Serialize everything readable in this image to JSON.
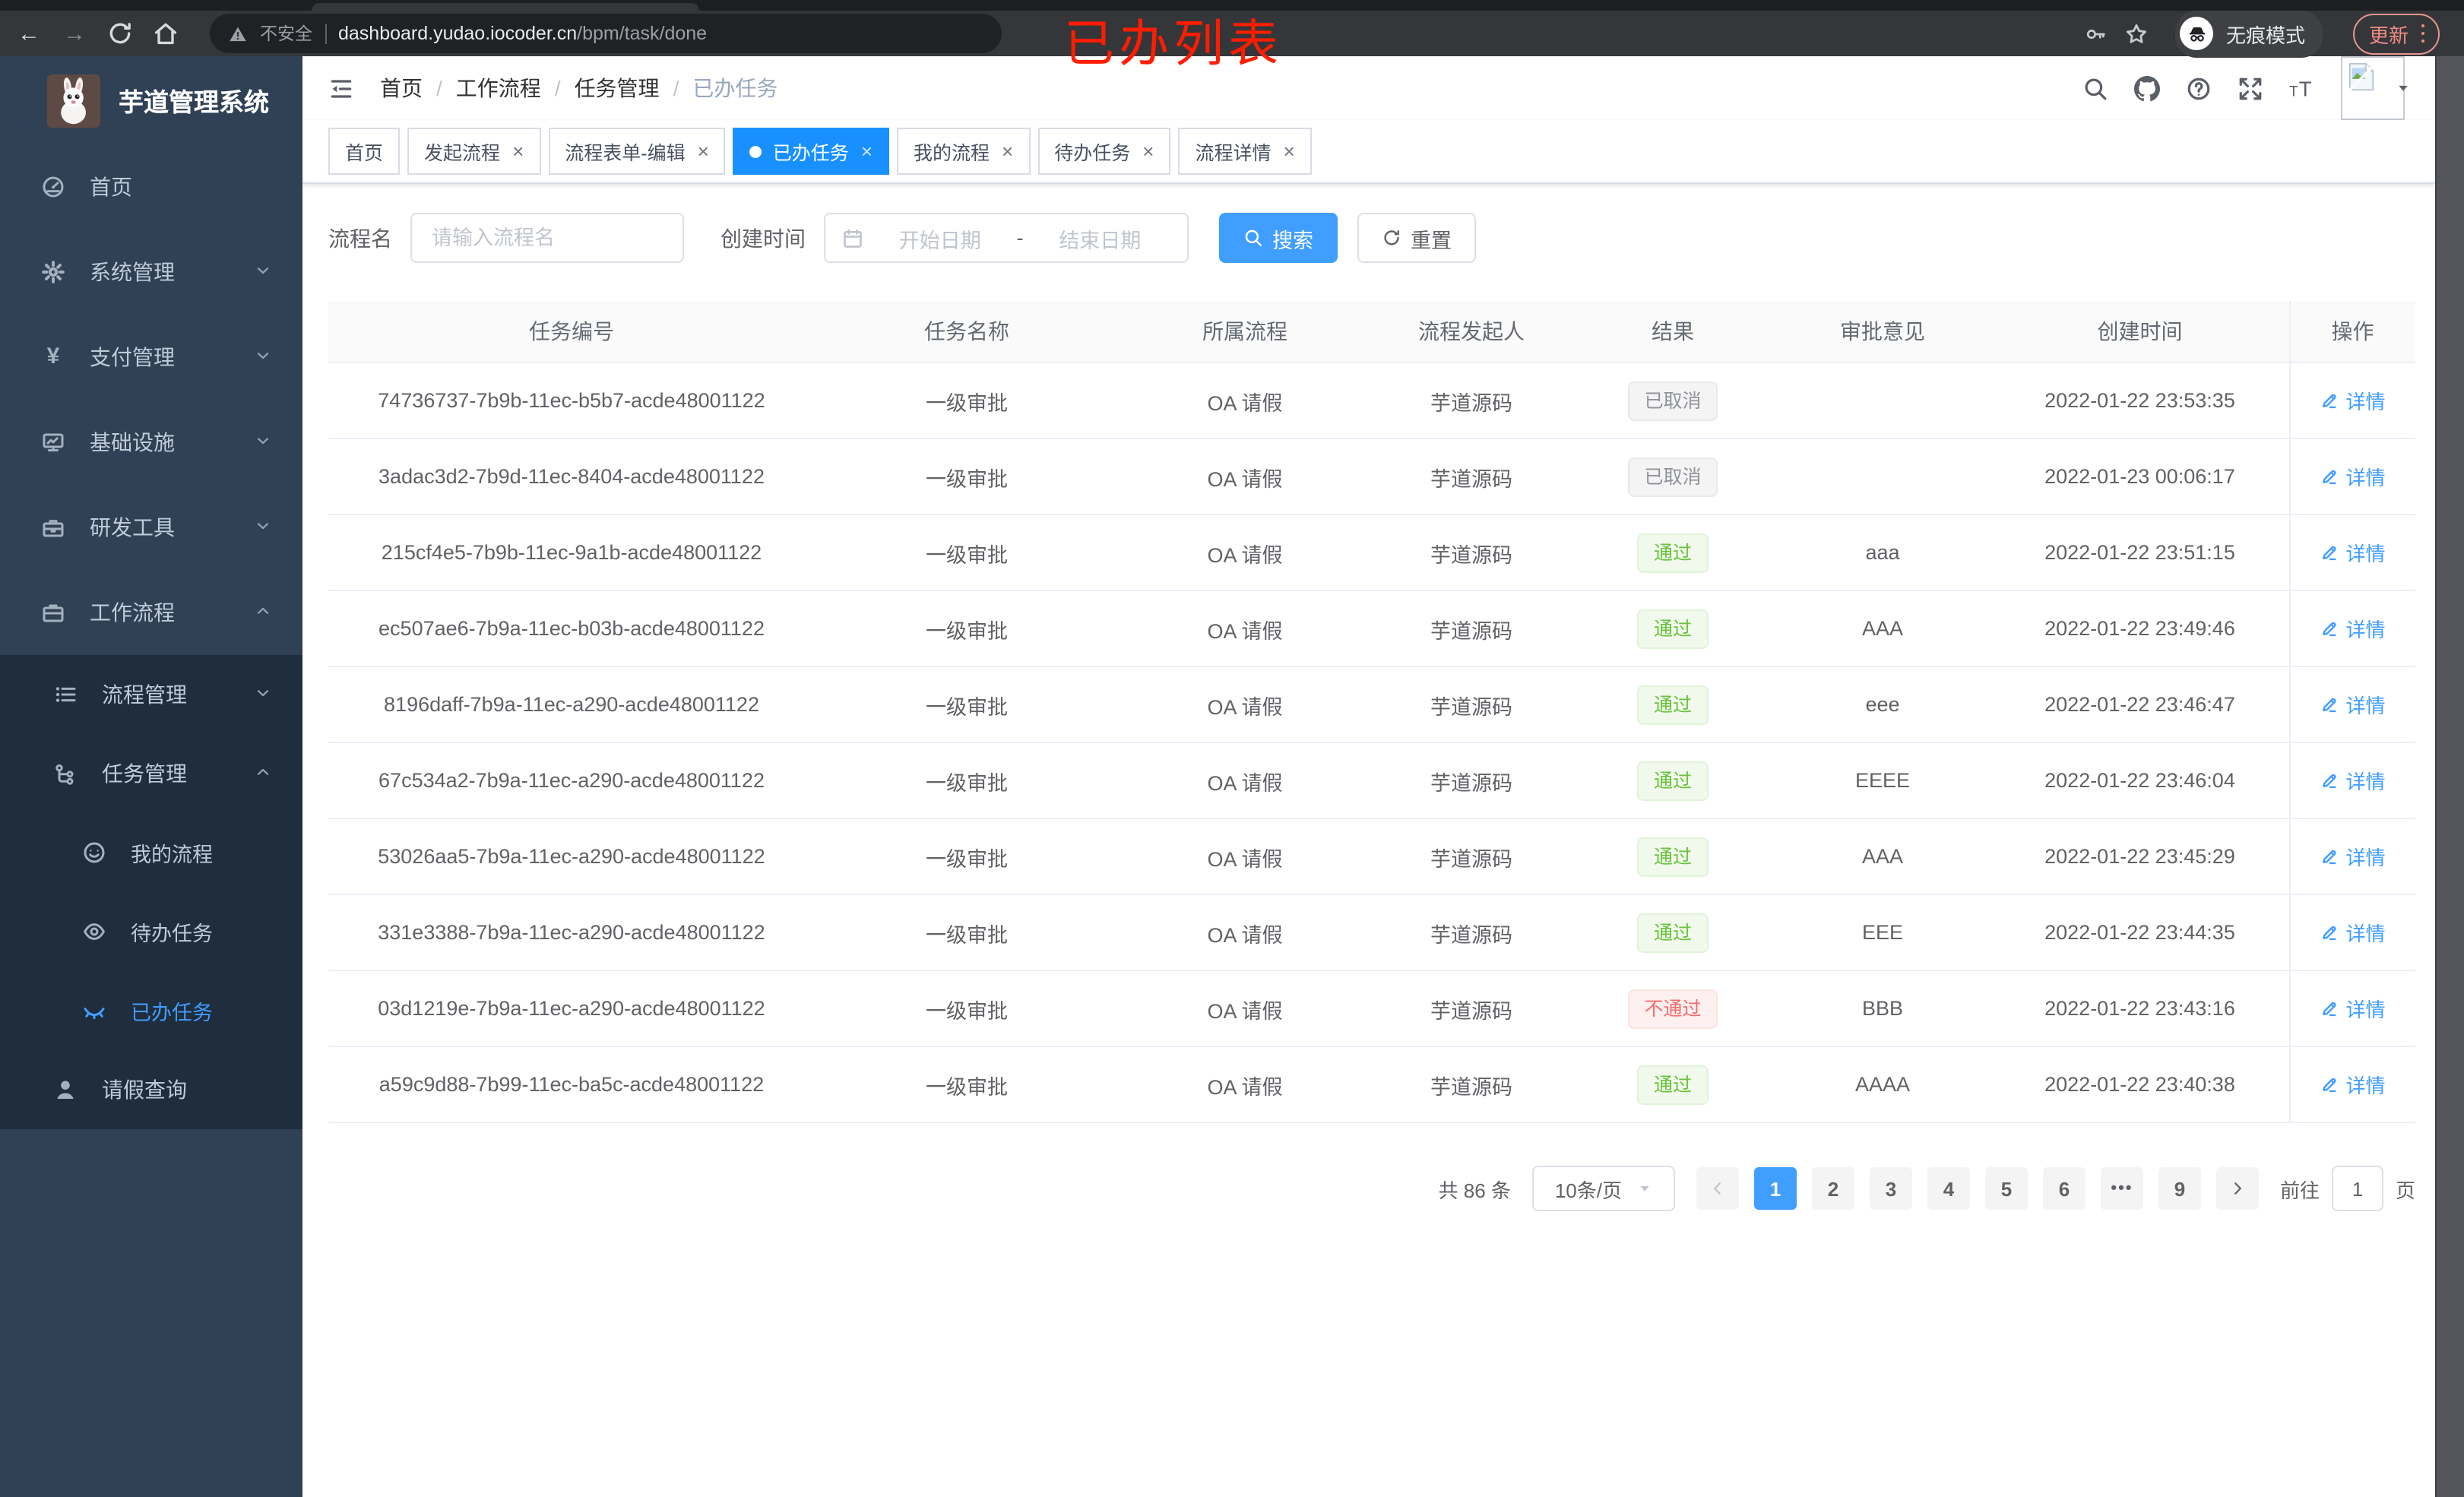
{
  "annotation": {
    "label": "已办列表",
    "color": "#ff1d00"
  },
  "browser": {
    "nav_icons": [
      "back-icon",
      "forward-icon",
      "reload-icon",
      "home-icon"
    ],
    "security_label": "不安全",
    "url_host": "dashboard.yudao.iocoder.cn",
    "url_path": "/bpm/task/done",
    "action_icons": [
      "key-icon",
      "star-icon"
    ],
    "incognito_label": "无痕模式",
    "incognito_icon": "incognito-icon",
    "update_label": "更新"
  },
  "sidebar": {
    "title": "芋道管理系统",
    "logo_icon": "rabbit-logo",
    "menu": [
      {
        "icon": "gauge-icon",
        "label": "首页"
      },
      {
        "icon": "gear-icon",
        "label": "系统管理",
        "expandable": true
      },
      {
        "icon": "yen-icon",
        "label": "支付管理",
        "expandable": true
      },
      {
        "icon": "monitor-icon",
        "label": "基础设施",
        "expandable": true
      },
      {
        "icon": "toolbox-icon",
        "label": "研发工具",
        "expandable": true
      },
      {
        "icon": "briefcase-icon",
        "label": "工作流程",
        "expandable": true,
        "expanded": true,
        "children": [
          {
            "icon": "list-icon",
            "label": "流程管理",
            "expandable": true
          },
          {
            "icon": "tree-icon",
            "label": "任务管理",
            "expandable": true,
            "expanded": true,
            "children": [
              {
                "icon": "face-icon",
                "label": "我的流程"
              },
              {
                "icon": "eye-icon",
                "label": "待办任务"
              },
              {
                "icon": "eye-closed-icon",
                "label": "已办任务",
                "active": true
              }
            ]
          },
          {
            "icon": "user-icon",
            "label": "请假查询"
          }
        ]
      }
    ]
  },
  "header": {
    "collapse_icon": "collapse-menu-icon",
    "breadcrumb": [
      "首页",
      "工作流程",
      "任务管理",
      "已办任务"
    ],
    "icons": [
      "search-icon",
      "github-icon",
      "help-icon",
      "fullscreen-icon",
      "font-size-icon"
    ],
    "avatar_icon": "broken-image-icon",
    "caret_icon": "caret-down-icon"
  },
  "tabs": [
    {
      "label": "首页",
      "closable": false,
      "active": false
    },
    {
      "label": "发起流程",
      "closable": true,
      "active": false
    },
    {
      "label": "流程表单-编辑",
      "closable": true,
      "active": false
    },
    {
      "label": "已办任务",
      "closable": true,
      "active": true
    },
    {
      "label": "我的流程",
      "closable": true,
      "active": false
    },
    {
      "label": "待办任务",
      "closable": true,
      "active": false
    },
    {
      "label": "流程详情",
      "closable": true,
      "active": false
    }
  ],
  "filters": {
    "name_label": "流程名",
    "name_placeholder": "请输入流程名",
    "time_label": "创建时间",
    "start_placeholder": "开始日期",
    "range_separator": "-",
    "end_placeholder": "结束日期",
    "search_label": "搜索",
    "reset_label": "重置"
  },
  "table": {
    "columns": [
      "任务编号",
      "任务名称",
      "所属流程",
      "流程发起人",
      "结果",
      "审批意见",
      "创建时间",
      "操作"
    ],
    "action_label": "详情",
    "rows": [
      {
        "id": "74736737-7b9b-11ec-b5b7-acde48001122",
        "name": "一级审批",
        "process": "OA 请假",
        "starter": "芋道源码",
        "result": "已取消",
        "result_type": "info",
        "comment": "",
        "time": "2022-01-22 23:53:35"
      },
      {
        "id": "3adac3d2-7b9d-11ec-8404-acde48001122",
        "name": "一级审批",
        "process": "OA 请假",
        "starter": "芋道源码",
        "result": "已取消",
        "result_type": "info",
        "comment": "",
        "time": "2022-01-23 00:06:17"
      },
      {
        "id": "215cf4e5-7b9b-11ec-9a1b-acde48001122",
        "name": "一级审批",
        "process": "OA 请假",
        "starter": "芋道源码",
        "result": "通过",
        "result_type": "success",
        "comment": "aaa",
        "time": "2022-01-22 23:51:15"
      },
      {
        "id": "ec507ae6-7b9a-11ec-b03b-acde48001122",
        "name": "一级审批",
        "process": "OA 请假",
        "starter": "芋道源码",
        "result": "通过",
        "result_type": "success",
        "comment": "AAA",
        "time": "2022-01-22 23:49:46"
      },
      {
        "id": "8196daff-7b9a-11ec-a290-acde48001122",
        "name": "一级审批",
        "process": "OA 请假",
        "starter": "芋道源码",
        "result": "通过",
        "result_type": "success",
        "comment": "eee",
        "time": "2022-01-22 23:46:47"
      },
      {
        "id": "67c534a2-7b9a-11ec-a290-acde48001122",
        "name": "一级审批",
        "process": "OA 请假",
        "starter": "芋道源码",
        "result": "通过",
        "result_type": "success",
        "comment": "EEEE",
        "time": "2022-01-22 23:46:04"
      },
      {
        "id": "53026aa5-7b9a-11ec-a290-acde48001122",
        "name": "一级审批",
        "process": "OA 请假",
        "starter": "芋道源码",
        "result": "通过",
        "result_type": "success",
        "comment": "AAA",
        "time": "2022-01-22 23:45:29"
      },
      {
        "id": "331e3388-7b9a-11ec-a290-acde48001122",
        "name": "一级审批",
        "process": "OA 请假",
        "starter": "芋道源码",
        "result": "通过",
        "result_type": "success",
        "comment": "EEE",
        "time": "2022-01-22 23:44:35"
      },
      {
        "id": "03d1219e-7b9a-11ec-a290-acde48001122",
        "name": "一级审批",
        "process": "OA 请假",
        "starter": "芋道源码",
        "result": "不通过",
        "result_type": "danger",
        "comment": "BBB",
        "time": "2022-01-22 23:43:16"
      },
      {
        "id": "a59c9d88-7b99-11ec-ba5c-acde48001122",
        "name": "一级审批",
        "process": "OA 请假",
        "starter": "芋道源码",
        "result": "通过",
        "result_type": "success",
        "comment": "AAAA",
        "time": "2022-01-22 23:40:38"
      }
    ]
  },
  "pagination": {
    "total_label": "共 86 条",
    "page_size_label": "10条/页",
    "pages": [
      "1",
      "2",
      "3",
      "4",
      "5",
      "6",
      "•••",
      "9"
    ],
    "active_page": "1",
    "goto_label": "前往",
    "goto_value": "1",
    "goto_suffix": "页"
  },
  "colors": {
    "accent": "#409eff",
    "tab_active": "#1890ff",
    "sidebar_bg": "#304156",
    "submenu_bg": "#1f2d3d",
    "success": "#67c23a",
    "danger": "#f56c6c",
    "info": "#909399",
    "annotation": "#ff1d00"
  }
}
